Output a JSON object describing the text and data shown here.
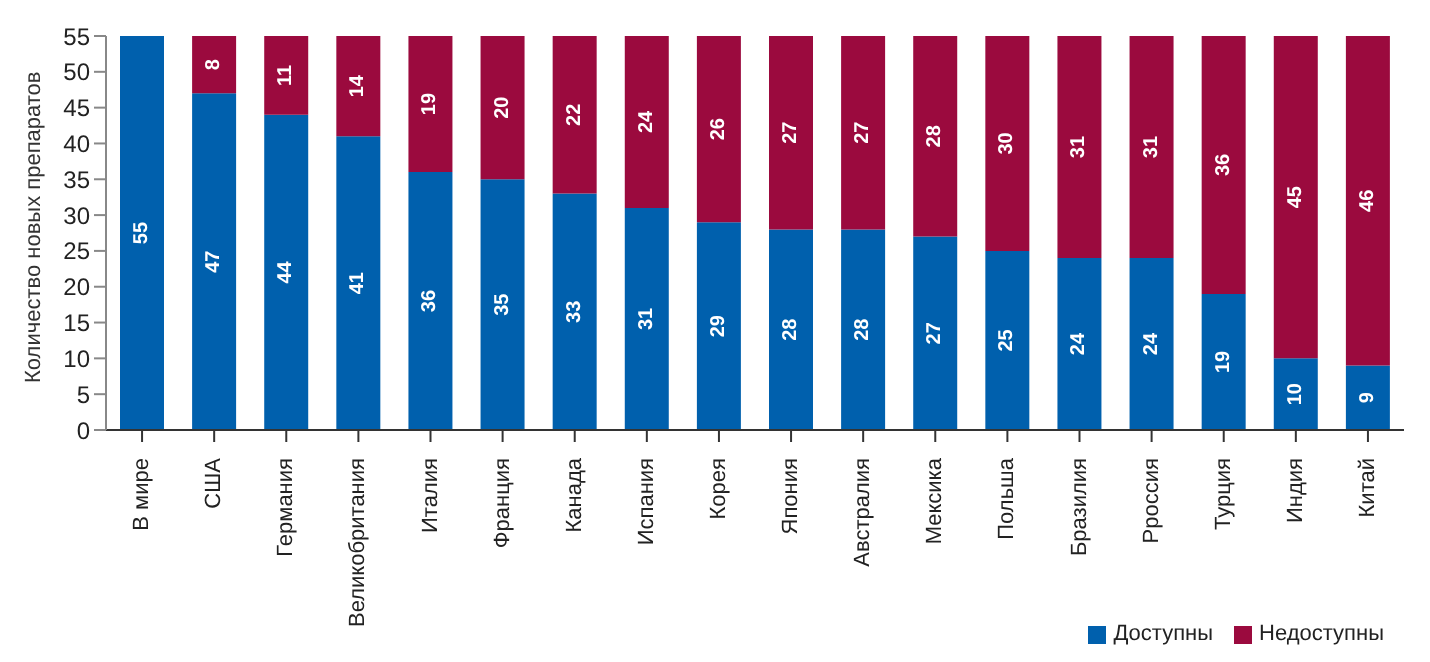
{
  "chart_data": {
    "type": "bar",
    "stacked": true,
    "ylabel": "Количество новых препаратов",
    "categories": [
      "В мире",
      "США",
      "Германия",
      "Великобритания",
      "Италия",
      "Франция",
      "Канада",
      "Испания",
      "Корея",
      "Япония",
      "Австралия",
      "Мексика",
      "Польша",
      "Бразилия",
      "Рроссия",
      "Турция",
      "Индия",
      "Китай"
    ],
    "series": [
      {
        "name": "Доступны",
        "color": "#0060ad",
        "values": [
          55,
          47,
          44,
          41,
          36,
          35,
          33,
          31,
          29,
          28,
          28,
          27,
          25,
          24,
          24,
          19,
          10,
          9
        ],
        "value_labels": [
          "55",
          "47",
          "44",
          "41",
          "36",
          "35",
          "33",
          "31",
          "29",
          "28",
          "28",
          "27",
          "25",
          "24",
          "24",
          "19",
          "10",
          "9"
        ]
      },
      {
        "name": "Недоступны",
        "color": "#9b0a3e",
        "values": [
          0,
          8,
          11,
          14,
          19,
          20,
          22,
          24,
          26,
          27,
          27,
          28,
          30,
          31,
          31,
          36,
          45,
          46
        ],
        "value_labels": [
          null,
          "8",
          "11",
          "14",
          "19",
          "20",
          "22",
          "24",
          "26",
          "27",
          "27",
          "28",
          "30",
          "31",
          "31",
          "36",
          "45",
          "46"
        ]
      }
    ],
    "ylim": [
      0,
      55
    ],
    "yticks": [
      0,
      5,
      10,
      15,
      20,
      25,
      30,
      35,
      40,
      45,
      50,
      55
    ],
    "grid": false,
    "legend": "bottom right"
  }
}
